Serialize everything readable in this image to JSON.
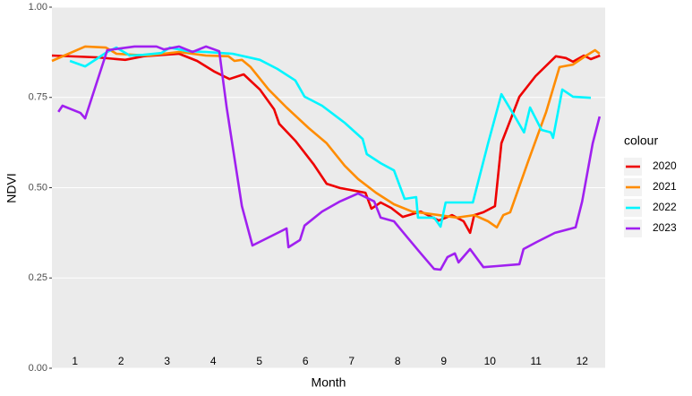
{
  "chart_data": {
    "type": "line",
    "x_label": "Month",
    "y_label": "NDVI",
    "legend_title": "colour",
    "xlim": [
      0.5,
      12.5
    ],
    "ylim": [
      0,
      1
    ],
    "xticks": [
      1,
      2,
      3,
      4,
      5,
      6,
      7,
      8,
      9,
      10,
      11,
      12
    ],
    "yticks": [
      {
        "value": 0,
        "label": "0.00"
      },
      {
        "value": 0.25,
        "label": "0.25"
      },
      {
        "value": 0.5,
        "label": "0.50"
      },
      {
        "value": 0.75,
        "label": "0.75"
      },
      {
        "value": 1,
        "label": "1.00"
      }
    ],
    "grid": true,
    "legend": "right",
    "series": [
      {
        "name": "2020",
        "color": "#ee0000",
        "x": [
          0.5,
          1.47,
          2.09,
          2.48,
          3.26,
          3.65,
          4.03,
          4.35,
          4.66,
          5.01,
          5.32,
          5.43,
          5.78,
          6.17,
          6.46,
          6.75,
          7.3,
          7.43,
          7.63,
          7.86,
          8.11,
          8.5,
          8.89,
          9.18,
          9.43,
          9.57,
          9.66,
          9.86,
          10.11,
          10.25,
          10.64,
          10.99,
          11.43,
          11.65,
          11.8,
          12.04,
          12.19,
          12.39
        ],
        "values": [
          0.866,
          0.861,
          0.854,
          0.864,
          0.871,
          0.851,
          0.821,
          0.801,
          0.814,
          0.772,
          0.717,
          0.677,
          0.63,
          0.566,
          0.511,
          0.499,
          0.486,
          0.442,
          0.459,
          0.444,
          0.419,
          0.434,
          0.409,
          0.424,
          0.407,
          0.375,
          0.424,
          0.432,
          0.449,
          0.623,
          0.752,
          0.809,
          0.864,
          0.859,
          0.849,
          0.866,
          0.856,
          0.866
        ]
      },
      {
        "name": "2021",
        "color": "#ff8c00",
        "x": [
          0.5,
          1.22,
          1.67,
          1.9,
          2.58,
          3.26,
          3.84,
          4.33,
          4.46,
          4.62,
          4.81,
          5.2,
          5.59,
          6.07,
          6.46,
          6.85,
          7.14,
          7.53,
          7.92,
          8.31,
          8.89,
          9.28,
          9.66,
          9.96,
          10.15,
          10.29,
          10.44,
          10.83,
          11.22,
          11.51,
          11.8,
          12.09,
          12.28,
          12.38
        ],
        "values": [
          0.851,
          0.891,
          0.888,
          0.871,
          0.866,
          0.876,
          0.866,
          0.864,
          0.851,
          0.854,
          0.834,
          0.772,
          0.722,
          0.665,
          0.623,
          0.561,
          0.524,
          0.486,
          0.454,
          0.434,
          0.424,
          0.417,
          0.424,
          0.407,
          0.39,
          0.424,
          0.432,
          0.573,
          0.71,
          0.834,
          0.841,
          0.866,
          0.881,
          0.871
        ]
      },
      {
        "name": "2022",
        "color": "#00f5ff",
        "x": [
          0.89,
          1.22,
          1.7,
          1.9,
          2.19,
          2.48,
          2.87,
          3.06,
          3.45,
          3.84,
          4.42,
          5.01,
          5.39,
          5.78,
          5.98,
          6.36,
          6.85,
          7.24,
          7.33,
          7.63,
          7.92,
          8.15,
          8.4,
          8.44,
          8.79,
          8.93,
          9.04,
          9.47,
          9.63,
          9.96,
          10.25,
          10.54,
          10.74,
          10.87,
          11.12,
          11.32,
          11.37,
          11.57,
          11.8,
          12.19
        ],
        "values": [
          0.851,
          0.836,
          0.876,
          0.888,
          0.866,
          0.868,
          0.873,
          0.888,
          0.878,
          0.876,
          0.871,
          0.854,
          0.829,
          0.797,
          0.752,
          0.727,
          0.68,
          0.635,
          0.593,
          0.568,
          0.548,
          0.469,
          0.474,
          0.417,
          0.417,
          0.392,
          0.459,
          0.459,
          0.459,
          0.623,
          0.759,
          0.697,
          0.653,
          0.722,
          0.66,
          0.653,
          0.638,
          0.772,
          0.752,
          0.749
        ]
      },
      {
        "name": "2023",
        "color": "#a020f0",
        "x": [
          0.64,
          0.73,
          1.12,
          1.22,
          1.7,
          2.29,
          2.77,
          2.93,
          3.26,
          3.55,
          3.84,
          4.13,
          4.29,
          4.62,
          4.85,
          5.59,
          5.63,
          5.88,
          5.98,
          6.36,
          6.75,
          7.14,
          7.49,
          7.63,
          7.92,
          8.21,
          8.5,
          8.79,
          8.93,
          9.08,
          9.24,
          9.32,
          9.57,
          9.86,
          10.15,
          10.64,
          10.73,
          11.02,
          11.41,
          11.86,
          12.0,
          12.23,
          12.38
        ],
        "values": [
          0.71,
          0.727,
          0.707,
          0.692,
          0.881,
          0.891,
          0.891,
          0.883,
          0.891,
          0.876,
          0.891,
          0.878,
          0.722,
          0.449,
          0.34,
          0.387,
          0.335,
          0.355,
          0.395,
          0.434,
          0.462,
          0.484,
          0.462,
          0.417,
          0.407,
          0.362,
          0.318,
          0.275,
          0.273,
          0.308,
          0.318,
          0.293,
          0.33,
          0.28,
          0.283,
          0.288,
          0.33,
          0.35,
          0.375,
          0.39,
          0.462,
          0.623,
          0.697
        ]
      }
    ]
  }
}
